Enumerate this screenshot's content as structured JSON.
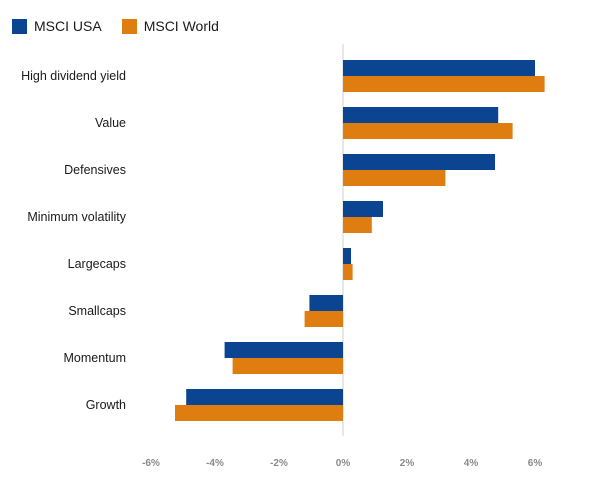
{
  "chart_data": {
    "type": "bar",
    "orientation": "horizontal",
    "categories": [
      "High dividend yield",
      "Value",
      "Defensives",
      "Minimum volatility",
      "Largecaps",
      "Smallcaps",
      "Momentum",
      "Growth"
    ],
    "series": [
      {
        "name": "MSCI USA",
        "color": "#0b4592",
        "values": [
          6.0,
          4.85,
          4.75,
          1.25,
          0.25,
          -1.05,
          -3.7,
          -4.9
        ]
      },
      {
        "name": "MSCI World",
        "color": "#e07d10",
        "values": [
          6.3,
          5.3,
          3.2,
          0.9,
          0.3,
          -1.2,
          -3.45,
          -5.25
        ]
      }
    ],
    "xlim": [
      -6,
      6
    ],
    "xticks": [
      -6,
      -4,
      -2,
      0,
      2,
      4,
      6
    ],
    "xtick_labels": [
      "-6%",
      "-4%",
      "-2%",
      "0%",
      "2%",
      "4%",
      "6%"
    ],
    "legend_position": "top-left",
    "grid": false
  }
}
